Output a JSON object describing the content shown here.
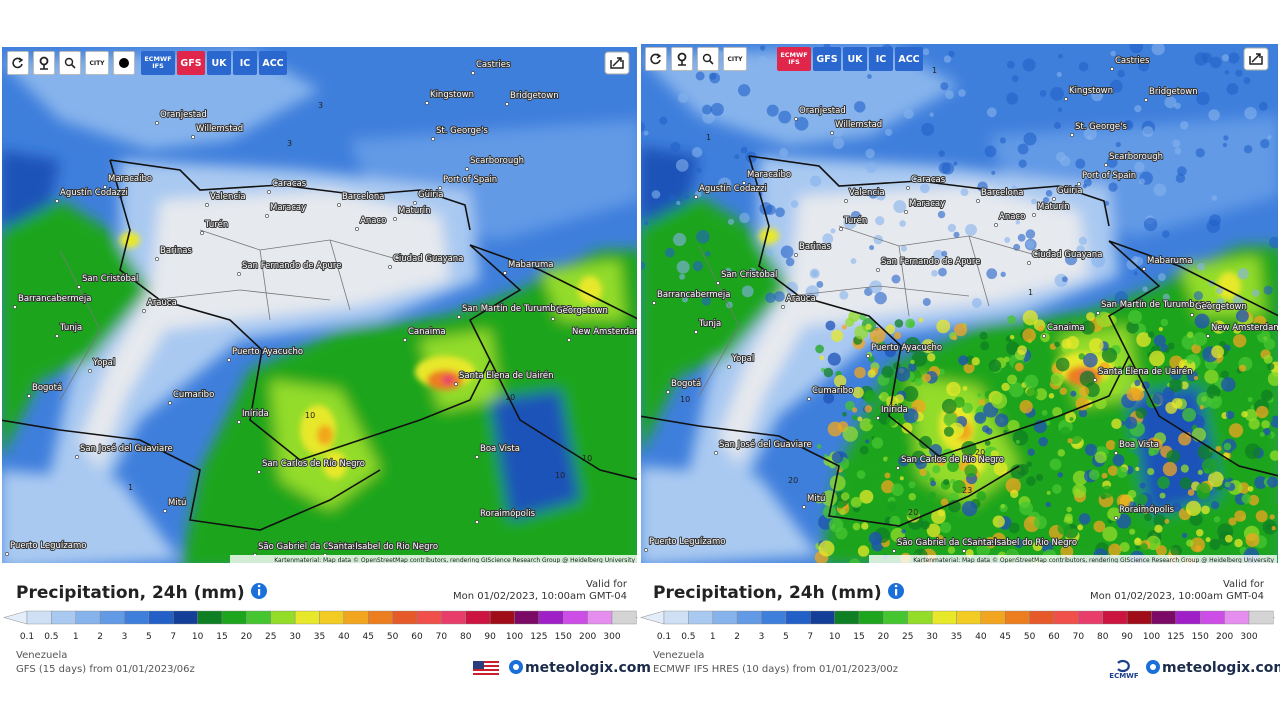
{
  "title": "Precipitation, 24h (mm)",
  "valid_label": "Valid for",
  "valid_time": "Mon 01/02/2023, 10:00am GMT-04",
  "region": "Venezuela",
  "logo": "meteologix.com",
  "attribution": "Kartenmaterial: Map data © OpenStreetMap contributors, rendering GIScience Research Group @ Heidelberg University",
  "map_labels": [
    "Castries",
    "Kingstown",
    "Bridgetown",
    "Oranjestad",
    "Willemstad",
    "St. George's",
    "Scarborough",
    "Maracaibo",
    "Caracas",
    "Port of Spain",
    "Barcelona",
    "Güiria",
    "Agustín Codazzi",
    "Valencia",
    "Maracay",
    "Maturín",
    "Anaco",
    "Turén",
    "Barinas",
    "Ciudad Guayana",
    "Mabaruma",
    "San Fernando de Apure",
    "San Cristóbal",
    "Barrancabermeja",
    "Arauca",
    "San Martín de Turumbang",
    "Georgetown",
    "Canaima",
    "New Amsterdam",
    "Tunja",
    "Puerto Ayacucho",
    "Yopal",
    "Santa Elena de Uairén",
    "Bogotá",
    "Cumaribo",
    "Inírida",
    "Boa Vista",
    "San José del Guaviare",
    "San Carlos de Río Negro",
    "Mitú",
    "Roraimópolis",
    "São Gabriel da Cachoeira",
    "Santa Isabel do Rio Negro",
    "Puerto Leguízamo"
  ],
  "legend_labels": [
    "0.1",
    "0.5",
    "1",
    "2",
    "3",
    "5",
    "7",
    "10",
    "15",
    "20",
    "25",
    "30",
    "35",
    "40",
    "45",
    "50",
    "60",
    "70",
    "80",
    "90",
    "100",
    "125",
    "150",
    "200",
    "300"
  ],
  "legend_colors": [
    "#cfe0f5",
    "#a9c9f1",
    "#86b3ec",
    "#629ae6",
    "#3f7fdc",
    "#2260c8",
    "#143f98",
    "#0f7f23",
    "#1ea51e",
    "#45c631",
    "#93dc2a",
    "#e8e82a",
    "#f2cc22",
    "#f2a61f",
    "#ec7e20",
    "#e65a2a",
    "#f04f4a",
    "#e83c6a",
    "#cc1440",
    "#a00c18",
    "#7a0a66",
    "#a020c8",
    "#cc4ee6",
    "#e58ef0",
    "#d4d4d4"
  ],
  "panels": [
    {
      "toolbar": [
        "CITY",
        "ECMWF IFS",
        "GFS",
        "UK",
        "IC",
        "ACC"
      ],
      "active": "GFS",
      "run": "GFS (15 days) from 01/01/2023/06z",
      "contours": [
        "3",
        "3",
        "3",
        "1",
        "10",
        "10",
        "10",
        "10"
      ]
    },
    {
      "toolbar": [
        "CITY",
        "ECMWF IFS",
        "GFS",
        "UK",
        "IC",
        "ACC"
      ],
      "active": "ECMWF IFS",
      "run": "ECMWF IFS HRES (10 days) from 01/01/2023/00z",
      "badge": "ECMWF",
      "contours": [
        "1",
        "1",
        "1",
        "10",
        "20",
        "20",
        "20",
        "23"
      ]
    }
  ]
}
